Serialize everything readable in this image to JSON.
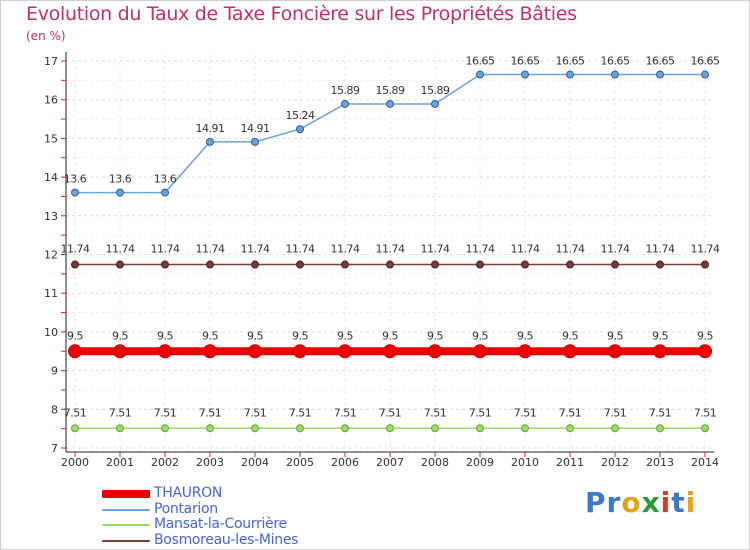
{
  "header": {
    "title": "Evolution du Taux de Taxe Foncière sur les Propriétés Bâties",
    "unit": "(en %)"
  },
  "chart_data": {
    "type": "line",
    "title": "Evolution du Taux de Taxe Foncière sur les Propriétés Bâties",
    "ylabel": "(en %)",
    "xlabel": "",
    "ylim": [
      7,
      17
    ],
    "yticks": [
      "7",
      "8",
      "9",
      "10",
      "11",
      "12",
      "13",
      "14",
      "15",
      "16",
      "17"
    ],
    "x": [
      "2000",
      "2001",
      "2002",
      "2003",
      "2004",
      "2005",
      "2006",
      "2007",
      "2008",
      "2009",
      "2010",
      "2011",
      "2012",
      "2013",
      "2014"
    ],
    "series": [
      {
        "name": "THAURON",
        "color": "#ee0000",
        "labels": [
          "9.5",
          "9.5",
          "9.5",
          "9.5",
          "9.5",
          "9.5",
          "9.5",
          "9.5",
          "9.5",
          "9.5",
          "9.5",
          "9.5",
          "9.5",
          "9.5",
          "9.5"
        ],
        "values": [
          9.5,
          9.5,
          9.5,
          9.5,
          9.5,
          9.5,
          9.5,
          9.5,
          9.5,
          9.5,
          9.5,
          9.5,
          9.5,
          9.5,
          9.5
        ]
      },
      {
        "name": "Pontarion",
        "color": "#6fa1d8",
        "labels": [
          "13.6",
          "13.6",
          "13.6",
          "14.91",
          "14.91",
          "15.24",
          "15.89",
          "15.89",
          "15.89",
          "16.65",
          "16.65",
          "16.65",
          "16.65",
          "16.65",
          "16.65"
        ],
        "values": [
          13.6,
          13.6,
          13.6,
          14.91,
          14.91,
          15.24,
          15.89,
          15.89,
          15.89,
          16.65,
          16.65,
          16.65,
          16.65,
          16.65,
          16.65
        ]
      },
      {
        "name": "Mansat-la-Courrière",
        "color": "#99dd66",
        "labels": [
          "7.51",
          "7.51",
          "7.51",
          "7.51",
          "7.51",
          "7.51",
          "7.51",
          "7.51",
          "7.51",
          "7.51",
          "7.51",
          "7.51",
          "7.51",
          "7.51",
          "7.51"
        ],
        "values": [
          7.51,
          7.51,
          7.51,
          7.51,
          7.51,
          7.51,
          7.51,
          7.51,
          7.51,
          7.51,
          7.51,
          7.51,
          7.51,
          7.51,
          7.51
        ]
      },
      {
        "name": "Bosmoreau-les-Mines",
        "color": "#7a3c3c",
        "labels": [
          "11.74",
          "11.74",
          "11.74",
          "11.74",
          "11.74",
          "11.74",
          "11.74",
          "11.74",
          "11.74",
          "11.74",
          "11.74",
          "11.74",
          "11.74",
          "11.74",
          "11.74"
        ],
        "values": [
          11.74,
          11.74,
          11.74,
          11.74,
          11.74,
          11.74,
          11.74,
          11.74,
          11.74,
          11.74,
          11.74,
          11.74,
          11.74,
          11.74,
          11.74
        ]
      }
    ]
  },
  "logo": {
    "parts": [
      "Pr",
      "o",
      "x",
      "i",
      "t",
      "i"
    ],
    "colors": [
      "#3a78c8",
      "#e8a21a",
      "#2a9a3a",
      "#d33d2b",
      "#3a78c8",
      "#e8a21a"
    ]
  }
}
